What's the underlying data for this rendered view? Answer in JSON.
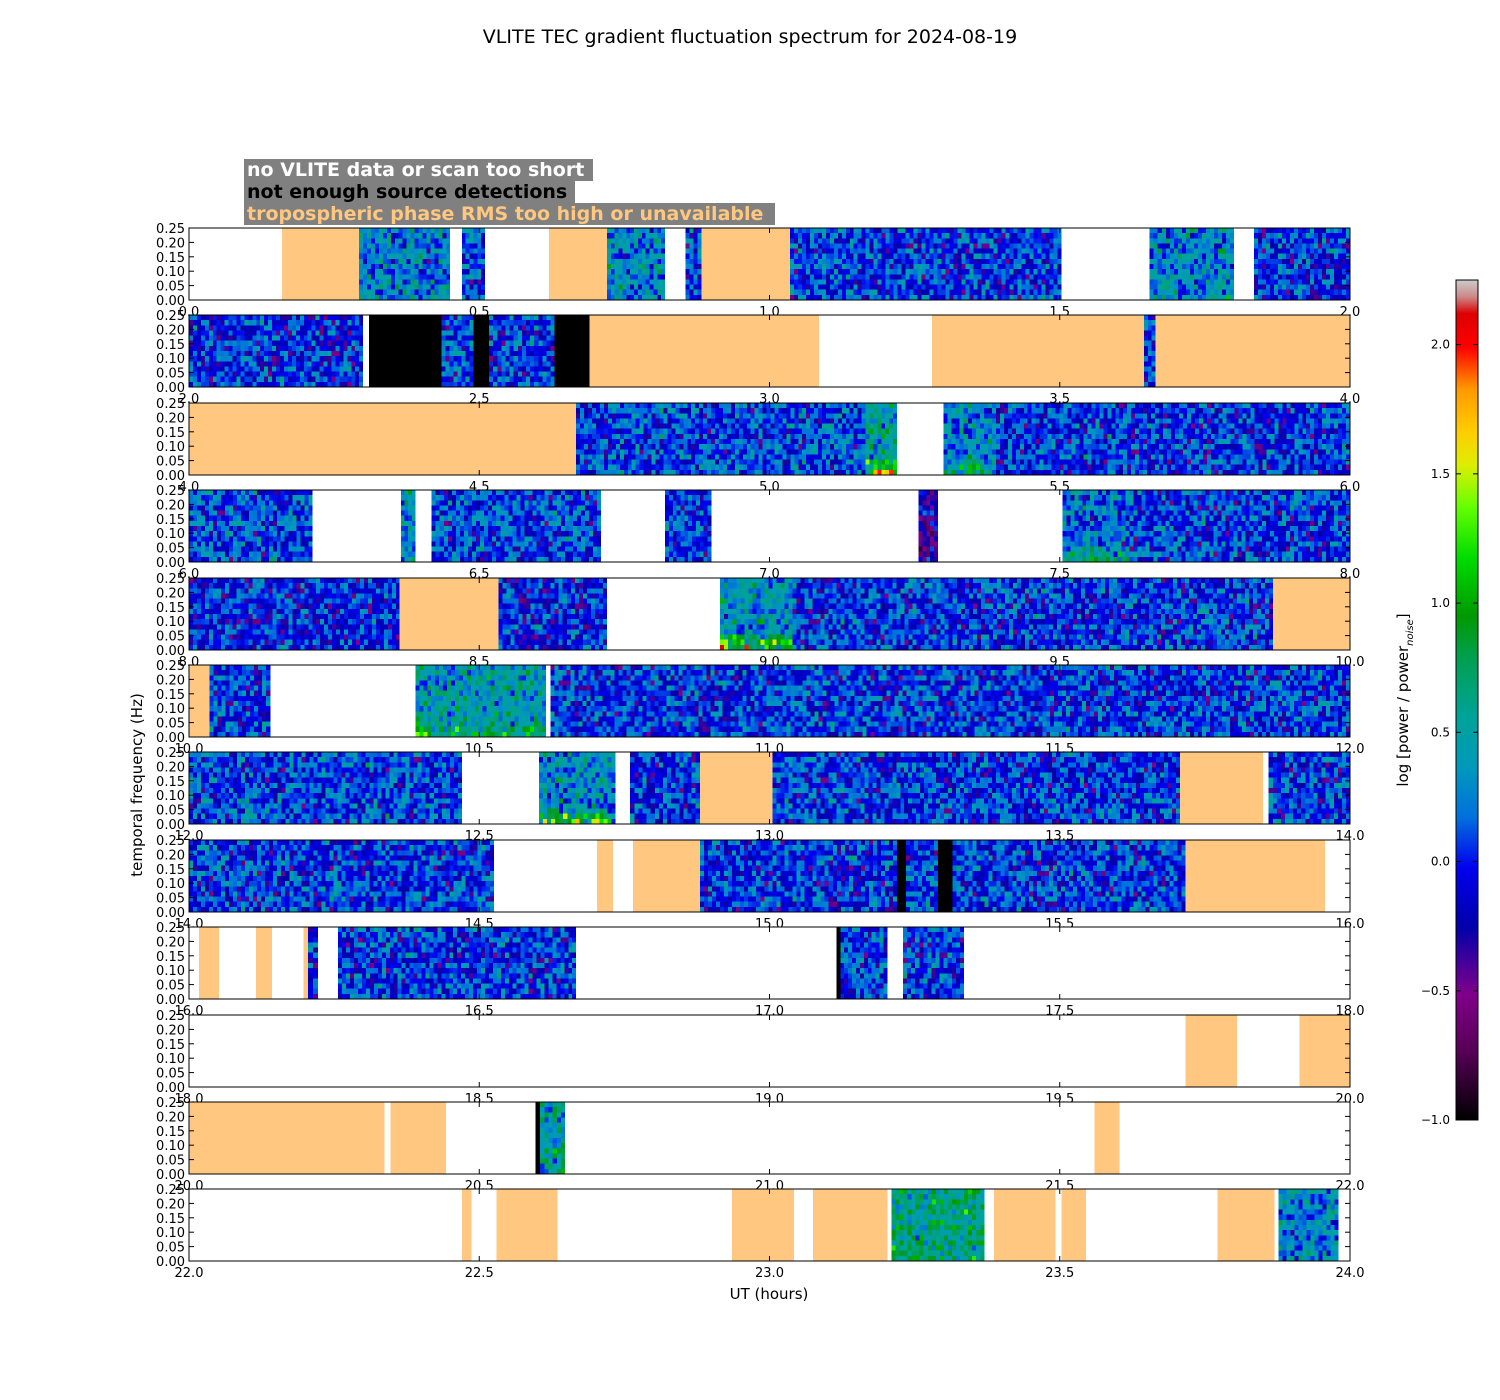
{
  "chart_data": {
    "type": "heatmap",
    "title": "VLITE TEC gradient fluctuation spectrum for 2024-08-19",
    "xlabel": "UT (hours)",
    "ylabel": "temporal frequency (Hz)",
    "colorbar": {
      "label_main": "log [power / power",
      "label_sub": "noise",
      "label_end": "]",
      "range": [
        -1.0,
        2.25
      ],
      "ticks": [
        "−1.0",
        "−0.5",
        "0.0",
        "0.5",
        "1.0",
        "1.5",
        "2.0"
      ],
      "tick_values": [
        -1.0,
        -0.5,
        0.0,
        0.5,
        1.0,
        1.5,
        2.0
      ]
    },
    "y_ticks": [
      "0.00",
      "0.05",
      "0.10",
      "0.15",
      "0.20",
      "0.25"
    ],
    "y_tick_values": [
      0.0,
      0.05,
      0.1,
      0.15,
      0.2,
      0.25
    ],
    "ylim": [
      0,
      0.25
    ],
    "legend": [
      {
        "text": "no VLITE data or scan too short",
        "color": "#ffffff",
        "meaning": "white"
      },
      {
        "text": "not enough source detections",
        "color": "#000000",
        "meaning": "black"
      },
      {
        "text": "tropospheric phase RMS too high or unavailable",
        "color": "#ffc77f",
        "meaning": "tan"
      }
    ],
    "legend_box_color": "#808080",
    "colors": {
      "trop": "#ffc77f",
      "nodet": "#000000",
      "nodata": "#ffffff"
    },
    "panels": [
      {
        "range": [
          0,
          2
        ],
        "ticks": [
          "0.0",
          "0.5",
          "1.0",
          "1.5",
          "2.0"
        ],
        "segments": [
          {
            "start": 0.0,
            "end": 0.16,
            "kind": "nodata"
          },
          {
            "start": 0.16,
            "end": 0.293,
            "kind": "trop"
          },
          {
            "start": 0.293,
            "end": 0.45,
            "kind": "data",
            "level": 0.25,
            "hot": 0.15
          },
          {
            "start": 0.45,
            "end": 0.47,
            "kind": "nodata"
          },
          {
            "start": 0.47,
            "end": 0.51,
            "kind": "data",
            "level": 0.15
          },
          {
            "start": 0.51,
            "end": 0.62,
            "kind": "nodata"
          },
          {
            "start": 0.62,
            "end": 0.72,
            "kind": "trop"
          },
          {
            "start": 0.72,
            "end": 0.82,
            "kind": "data",
            "level": 0.3
          },
          {
            "start": 0.82,
            "end": 0.855,
            "kind": "nodata"
          },
          {
            "start": 0.855,
            "end": 0.883,
            "kind": "data",
            "level": 0.1
          },
          {
            "start": 0.883,
            "end": 1.035,
            "kind": "trop"
          },
          {
            "start": 1.035,
            "end": 1.503,
            "kind": "data",
            "level": 0.05
          },
          {
            "start": 1.503,
            "end": 1.655,
            "kind": "nodata"
          },
          {
            "start": 1.655,
            "end": 1.8,
            "kind": "data",
            "level": 0.3,
            "hot": 0.1
          },
          {
            "start": 1.8,
            "end": 1.835,
            "kind": "nodata"
          },
          {
            "start": 1.835,
            "end": 2.0,
            "kind": "data",
            "level": 0.05
          }
        ]
      },
      {
        "range": [
          2,
          4
        ],
        "ticks": [
          "2.0",
          "2.5",
          "3.0",
          "3.5",
          "4.0"
        ],
        "segments": [
          {
            "start": 2.0,
            "end": 2.3,
            "kind": "data",
            "level": 0.0
          },
          {
            "start": 2.3,
            "end": 2.31,
            "kind": "nodata"
          },
          {
            "start": 2.31,
            "end": 2.435,
            "kind": "nodet"
          },
          {
            "start": 2.435,
            "end": 2.49,
            "kind": "data",
            "level": 0.1
          },
          {
            "start": 2.49,
            "end": 2.517,
            "kind": "nodet"
          },
          {
            "start": 2.517,
            "end": 2.63,
            "kind": "data",
            "level": 0.05
          },
          {
            "start": 2.63,
            "end": 2.69,
            "kind": "nodet"
          },
          {
            "start": 2.69,
            "end": 3.085,
            "kind": "trop"
          },
          {
            "start": 3.085,
            "end": 3.28,
            "kind": "nodata"
          },
          {
            "start": 3.28,
            "end": 3.645,
            "kind": "trop"
          },
          {
            "start": 3.645,
            "end": 3.665,
            "kind": "data",
            "level": 0.0
          },
          {
            "start": 3.665,
            "end": 4.0,
            "kind": "trop"
          }
        ]
      },
      {
        "range": [
          4,
          6
        ],
        "ticks": [
          "4.0",
          "4.5",
          "5.0",
          "5.5",
          "6.0"
        ],
        "segments": [
          {
            "start": 4.0,
            "end": 4.667,
            "kind": "trop"
          },
          {
            "start": 4.667,
            "end": 4.995,
            "kind": "data",
            "level": 0.1
          },
          {
            "start": 4.995,
            "end": 5.22,
            "kind": "data",
            "level": 0.1
          },
          {
            "start": 5.165,
            "end": 5.22,
            "kind": "data",
            "level": 0.5,
            "hot": 0.7
          },
          {
            "start": 5.22,
            "end": 5.3,
            "kind": "nodata"
          },
          {
            "start": 5.3,
            "end": 5.39,
            "kind": "data",
            "level": 0.3,
            "hot": 0.3
          },
          {
            "start": 5.39,
            "end": 6.0,
            "kind": "data",
            "level": 0.05
          }
        ]
      },
      {
        "range": [
          6,
          8
        ],
        "ticks": [
          "6.0",
          "6.5",
          "7.0",
          "7.5",
          "8.0"
        ],
        "segments": [
          {
            "start": 6.0,
            "end": 6.213,
            "kind": "data",
            "level": 0.1
          },
          {
            "start": 6.213,
            "end": 6.365,
            "kind": "nodata"
          },
          {
            "start": 6.365,
            "end": 6.39,
            "kind": "data",
            "level": 0.3,
            "hot": 0.1
          },
          {
            "start": 6.39,
            "end": 6.418,
            "kind": "nodata"
          },
          {
            "start": 6.418,
            "end": 6.71,
            "kind": "data",
            "level": 0.1
          },
          {
            "start": 6.71,
            "end": 6.82,
            "kind": "nodata"
          },
          {
            "start": 6.82,
            "end": 6.9,
            "kind": "data",
            "level": 0.05
          },
          {
            "start": 6.9,
            "end": 7.257,
            "kind": "nodata"
          },
          {
            "start": 7.257,
            "end": 7.29,
            "kind": "data",
            "level": -0.3
          },
          {
            "start": 7.29,
            "end": 7.505,
            "kind": "nodata"
          },
          {
            "start": 7.505,
            "end": 7.62,
            "kind": "data",
            "level": 0.2,
            "hot": 0.5
          },
          {
            "start": 7.62,
            "end": 8.0,
            "kind": "data",
            "level": 0.05
          }
        ]
      },
      {
        "range": [
          8,
          10
        ],
        "ticks": [
          "8.0",
          "8.5",
          "9.0",
          "9.5",
          "10.0"
        ],
        "segments": [
          {
            "start": 8.0,
            "end": 8.363,
            "kind": "data",
            "level": 0.0
          },
          {
            "start": 8.363,
            "end": 8.533,
            "kind": "trop"
          },
          {
            "start": 8.533,
            "end": 8.72,
            "kind": "data",
            "level": 0.0
          },
          {
            "start": 8.72,
            "end": 8.915,
            "kind": "nodata"
          },
          {
            "start": 8.915,
            "end": 9.04,
            "kind": "data",
            "level": 0.35,
            "hot": 0.7
          },
          {
            "start": 9.04,
            "end": 9.867,
            "kind": "data",
            "level": 0.05
          },
          {
            "start": 9.867,
            "end": 10.0,
            "kind": "trop"
          }
        ]
      },
      {
        "range": [
          10,
          12
        ],
        "ticks": [
          "10.0",
          "10.5",
          "11.0",
          "11.5",
          "12.0"
        ],
        "segments": [
          {
            "start": 10.0,
            "end": 10.035,
            "kind": "trop"
          },
          {
            "start": 10.035,
            "end": 10.14,
            "kind": "data",
            "level": 0.05
          },
          {
            "start": 10.14,
            "end": 10.39,
            "kind": "nodata"
          },
          {
            "start": 10.39,
            "end": 10.615,
            "kind": "data",
            "level": 0.45,
            "hot": 0.3
          },
          {
            "start": 10.615,
            "end": 10.623,
            "kind": "nodata"
          },
          {
            "start": 10.623,
            "end": 12.0,
            "kind": "data",
            "level": 0.05
          }
        ]
      },
      {
        "range": [
          12,
          14
        ],
        "ticks": [
          "12.0",
          "12.5",
          "13.0",
          "13.5",
          "14.0"
        ],
        "segments": [
          {
            "start": 12.0,
            "end": 12.47,
            "kind": "data",
            "level": 0.1
          },
          {
            "start": 12.47,
            "end": 12.603,
            "kind": "nodata"
          },
          {
            "start": 12.603,
            "end": 12.735,
            "kind": "data",
            "level": 0.35,
            "hot": 0.5
          },
          {
            "start": 12.735,
            "end": 12.76,
            "kind": "nodata"
          },
          {
            "start": 12.76,
            "end": 12.88,
            "kind": "data",
            "level": 0.05
          },
          {
            "start": 12.88,
            "end": 13.005,
            "kind": "trop"
          },
          {
            "start": 13.005,
            "end": 13.707,
            "kind": "data",
            "level": 0.05
          },
          {
            "start": 13.707,
            "end": 13.85,
            "kind": "trop"
          },
          {
            "start": 13.85,
            "end": 13.86,
            "kind": "nodata"
          },
          {
            "start": 13.86,
            "end": 14.0,
            "kind": "data",
            "level": 0.05
          }
        ]
      },
      {
        "range": [
          14,
          16
        ],
        "ticks": [
          "14.0",
          "14.5",
          "15.0",
          "15.5",
          "16.0"
        ],
        "segments": [
          {
            "start": 14.0,
            "end": 14.525,
            "kind": "data",
            "level": 0.05
          },
          {
            "start": 14.525,
            "end": 14.703,
            "kind": "nodata"
          },
          {
            "start": 14.703,
            "end": 14.73,
            "kind": "trop"
          },
          {
            "start": 14.73,
            "end": 14.765,
            "kind": "nodata"
          },
          {
            "start": 14.765,
            "end": 14.88,
            "kind": "trop"
          },
          {
            "start": 14.88,
            "end": 15.22,
            "kind": "data",
            "level": 0.05
          },
          {
            "start": 15.22,
            "end": 15.235,
            "kind": "nodet"
          },
          {
            "start": 15.235,
            "end": 15.29,
            "kind": "data",
            "level": 0.05
          },
          {
            "start": 15.29,
            "end": 15.315,
            "kind": "nodet"
          },
          {
            "start": 15.315,
            "end": 15.717,
            "kind": "data",
            "level": 0.05
          },
          {
            "start": 15.717,
            "end": 15.957,
            "kind": "trop"
          },
          {
            "start": 15.957,
            "end": 16.0,
            "kind": "nodata"
          }
        ]
      },
      {
        "range": [
          16,
          18
        ],
        "ticks": [
          "16.0",
          "16.5",
          "17.0",
          "17.5",
          "18.0"
        ],
        "segments": [
          {
            "start": 16.0,
            "end": 16.017,
            "kind": "nodata"
          },
          {
            "start": 16.017,
            "end": 16.052,
            "kind": "trop"
          },
          {
            "start": 16.052,
            "end": 16.115,
            "kind": "nodata"
          },
          {
            "start": 16.115,
            "end": 16.143,
            "kind": "trop"
          },
          {
            "start": 16.143,
            "end": 16.197,
            "kind": "nodata"
          },
          {
            "start": 16.197,
            "end": 16.205,
            "kind": "trop"
          },
          {
            "start": 16.205,
            "end": 16.222,
            "kind": "data",
            "level": 0.05
          },
          {
            "start": 16.222,
            "end": 16.257,
            "kind": "nodata"
          },
          {
            "start": 16.257,
            "end": 16.667,
            "kind": "data",
            "level": 0.05
          },
          {
            "start": 16.667,
            "end": 17.115,
            "kind": "nodata"
          },
          {
            "start": 17.115,
            "end": 17.122,
            "kind": "nodet"
          },
          {
            "start": 17.122,
            "end": 17.203,
            "kind": "data",
            "level": 0.05
          },
          {
            "start": 17.203,
            "end": 17.23,
            "kind": "nodata"
          },
          {
            "start": 17.23,
            "end": 17.335,
            "kind": "data",
            "level": 0.05
          },
          {
            "start": 17.335,
            "end": 18.0,
            "kind": "nodata"
          }
        ]
      },
      {
        "range": [
          18,
          20
        ],
        "ticks": [
          "18.0",
          "18.5",
          "19.0",
          "19.5",
          "20.0"
        ],
        "segments": [
          {
            "start": 18.0,
            "end": 19.717,
            "kind": "nodata"
          },
          {
            "start": 19.717,
            "end": 19.805,
            "kind": "trop"
          },
          {
            "start": 19.805,
            "end": 19.913,
            "kind": "nodata"
          },
          {
            "start": 19.913,
            "end": 20.0,
            "kind": "trop"
          }
        ]
      },
      {
        "range": [
          20,
          22
        ],
        "ticks": [
          "20.0",
          "20.5",
          "21.0",
          "21.5",
          "22.0"
        ],
        "segments": [
          {
            "start": 20.0,
            "end": 20.337,
            "kind": "trop"
          },
          {
            "start": 20.337,
            "end": 20.347,
            "kind": "nodata"
          },
          {
            "start": 20.347,
            "end": 20.443,
            "kind": "trop"
          },
          {
            "start": 20.443,
            "end": 20.597,
            "kind": "nodata"
          },
          {
            "start": 20.597,
            "end": 20.605,
            "kind": "nodet"
          },
          {
            "start": 20.605,
            "end": 20.648,
            "kind": "data",
            "level": 0.5
          },
          {
            "start": 20.648,
            "end": 21.56,
            "kind": "nodata"
          },
          {
            "start": 21.56,
            "end": 21.603,
            "kind": "trop"
          },
          {
            "start": 21.603,
            "end": 22.0,
            "kind": "nodata"
          }
        ]
      },
      {
        "range": [
          22,
          24
        ],
        "ticks": [
          "22.0",
          "22.5",
          "23.0",
          "23.5",
          "24.0"
        ],
        "segments": [
          {
            "start": 22.0,
            "end": 22.47,
            "kind": "nodata"
          },
          {
            "start": 22.47,
            "end": 22.487,
            "kind": "trop"
          },
          {
            "start": 22.487,
            "end": 22.53,
            "kind": "nodata"
          },
          {
            "start": 22.53,
            "end": 22.635,
            "kind": "trop"
          },
          {
            "start": 22.635,
            "end": 22.935,
            "kind": "nodata"
          },
          {
            "start": 22.935,
            "end": 23.042,
            "kind": "trop"
          },
          {
            "start": 23.042,
            "end": 23.075,
            "kind": "nodata"
          },
          {
            "start": 23.075,
            "end": 23.203,
            "kind": "trop"
          },
          {
            "start": 23.203,
            "end": 23.21,
            "kind": "nodata"
          },
          {
            "start": 23.21,
            "end": 23.37,
            "kind": "data",
            "level": 0.65
          },
          {
            "start": 23.37,
            "end": 23.387,
            "kind": "nodata"
          },
          {
            "start": 23.387,
            "end": 23.493,
            "kind": "trop"
          },
          {
            "start": 23.493,
            "end": 23.503,
            "kind": "nodata"
          },
          {
            "start": 23.503,
            "end": 23.545,
            "kind": "trop"
          },
          {
            "start": 23.545,
            "end": 23.772,
            "kind": "nodata"
          },
          {
            "start": 23.772,
            "end": 23.87,
            "kind": "trop"
          },
          {
            "start": 23.87,
            "end": 23.877,
            "kind": "nodata"
          },
          {
            "start": 23.877,
            "end": 23.98,
            "kind": "data",
            "level": 0.3
          },
          {
            "start": 23.98,
            "end": 24.0,
            "kind": "nodata"
          }
        ]
      }
    ]
  }
}
